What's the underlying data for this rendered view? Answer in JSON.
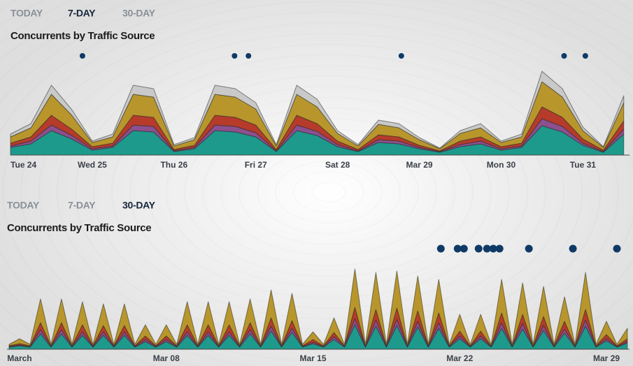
{
  "chart_data": [
    {
      "type": "area",
      "stacked": true,
      "tabs": [
        "TODAY",
        "7-DAY",
        "30-DAY"
      ],
      "selected_tab": 1,
      "title": "Concurrents by Traffic Source",
      "x": [
        0,
        0.25,
        0.5,
        0.75,
        1,
        1.25,
        1.5,
        1.75,
        2,
        2.25,
        2.5,
        2.75,
        3,
        3.25,
        3.5,
        3.75,
        4,
        4.25,
        4.5,
        4.75,
        5,
        5.25,
        5.5,
        5.75,
        6,
        6.25,
        6.5,
        6.75,
        7,
        7.25,
        7.5
      ],
      "xlim": [
        0,
        7.57
      ],
      "ylim": [
        0,
        130
      ],
      "xticks": [
        {
          "value": 0,
          "label": "Tue 24"
        },
        {
          "value": 1,
          "label": "Wed 25"
        },
        {
          "value": 2,
          "label": "Thu 26"
        },
        {
          "value": 3,
          "label": "Fri 27"
        },
        {
          "value": 4,
          "label": "Sat 28"
        },
        {
          "value": 5,
          "label": "Mar 29"
        },
        {
          "value": 6,
          "label": "Mon 30"
        },
        {
          "value": 7,
          "label": "Tue 31"
        }
      ],
      "series": [
        {
          "color": "#1d9a8c",
          "values": [
            11,
            16,
            35,
            23,
            7,
            11,
            35,
            33,
            5,
            9,
            35,
            33,
            26,
            5,
            35,
            28,
            12,
            5,
            18,
            16,
            9,
            4,
            12,
            16,
            7,
            11,
            42,
            33,
            14,
            4,
            30
          ]
        },
        {
          "color": "#8c4f8f",
          "values": [
            2,
            4,
            8,
            5,
            2,
            2,
            8,
            8,
            1,
            2,
            8,
            8,
            6,
            1,
            8,
            6,
            3,
            1,
            4,
            4,
            2,
            1,
            3,
            4,
            2,
            2,
            10,
            8,
            3,
            1,
            7
          ]
        },
        {
          "color": "#b63b2b",
          "values": [
            4,
            6,
            14,
            9,
            3,
            4,
            14,
            13,
            2,
            3,
            14,
            13,
            11,
            2,
            14,
            11,
            5,
            2,
            7,
            6,
            3,
            1,
            5,
            6,
            3,
            4,
            17,
            13,
            6,
            2,
            12
          ]
        },
        {
          "color": "#b8962c",
          "values": [
            9,
            13,
            30,
            20,
            6,
            9,
            30,
            29,
            5,
            8,
            30,
            29,
            23,
            5,
            30,
            24,
            11,
            5,
            15,
            13,
            8,
            3,
            11,
            13,
            6,
            9,
            36,
            29,
            12,
            4,
            26
          ]
        },
        {
          "color": "#c9c9c9",
          "values": [
            4,
            6,
            13,
            8,
            2,
            4,
            13,
            12,
            2,
            3,
            13,
            12,
            9,
            2,
            13,
            11,
            4,
            2,
            6,
            6,
            3,
            1,
            4,
            6,
            2,
            4,
            15,
            12,
            5,
            1,
            10
          ]
        }
      ],
      "events": [
        0.88,
        2.74,
        2.91,
        4.78,
        6.77,
        7.03
      ],
      "event_color": "#0f3a66"
    },
    {
      "type": "area",
      "stacked": true,
      "tabs": [
        "TODAY",
        "7-DAY",
        "30-DAY"
      ],
      "selected_tab": 2,
      "title": "Concurrents by Traffic Source",
      "x": [
        0.5,
        1,
        1.5,
        2,
        2.5,
        3,
        3.5,
        4,
        4.5,
        5,
        5.5,
        6,
        6.5,
        7,
        7.5,
        8,
        8.5,
        9,
        9.5,
        10,
        10.5,
        11,
        11.5,
        12,
        12.5,
        13,
        13.5,
        14,
        14.5,
        15,
        15.5,
        16,
        16.5,
        17,
        17.5,
        18,
        18.5,
        19,
        19.5,
        20,
        20.5,
        21,
        21.5,
        22,
        22.5,
        23,
        23.5,
        24,
        24.5,
        25,
        25.5,
        26,
        26.5,
        27,
        27.5,
        28,
        28.5,
        29,
        29.5,
        30
      ],
      "xlim": [
        0.4,
        30.1
      ],
      "ylim": [
        0,
        120
      ],
      "xticks": [
        {
          "value": 1,
          "label": "March"
        },
        {
          "value": 8,
          "label": "Mar 08"
        },
        {
          "value": 15,
          "label": "Mar 15"
        },
        {
          "value": 22,
          "label": "Mar 22"
        },
        {
          "value": 29,
          "label": "Mar 29"
        }
      ],
      "series": [
        {
          "color": "#1d9a8c",
          "values": [
            3,
            5,
            3,
            22,
            3,
            22,
            3,
            20,
            3,
            20,
            3,
            20,
            3,
            11,
            3,
            11,
            3,
            20,
            3,
            20,
            3,
            20,
            3,
            22,
            3,
            26,
            3,
            24,
            3,
            8,
            3,
            14,
            3,
            35,
            3,
            33,
            3,
            34,
            3,
            32,
            3,
            30,
            3,
            15,
            3,
            15,
            3,
            30,
            3,
            29,
            3,
            27,
            3,
            23,
            3,
            33,
            3,
            12,
            3,
            9
          ]
        },
        {
          "color": "#8c4f8f",
          "values": [
            1,
            1,
            1,
            6,
            1,
            6,
            1,
            5,
            1,
            5,
            1,
            5,
            1,
            3,
            1,
            3,
            1,
            5,
            1,
            5,
            1,
            5,
            1,
            6,
            1,
            7,
            1,
            6,
            1,
            2,
            1,
            4,
            1,
            9,
            1,
            9,
            1,
            9,
            1,
            8,
            1,
            8,
            1,
            4,
            1,
            4,
            1,
            8,
            1,
            8,
            1,
            7,
            1,
            6,
            1,
            9,
            1,
            3,
            1,
            2
          ]
        },
        {
          "color": "#b63b2b",
          "values": [
            1,
            2,
            1,
            10,
            1,
            10,
            1,
            10,
            1,
            9,
            1,
            9,
            1,
            5,
            1,
            5,
            1,
            10,
            1,
            10,
            1,
            10,
            1,
            10,
            1,
            12,
            1,
            11,
            1,
            4,
            1,
            6,
            1,
            16,
            1,
            15,
            1,
            16,
            1,
            15,
            1,
            14,
            1,
            7,
            1,
            7,
            1,
            14,
            1,
            13,
            1,
            13,
            1,
            11,
            1,
            15,
            1,
            6,
            1,
            4
          ]
        },
        {
          "color": "#b8962c",
          "values": [
            2,
            7,
            2,
            34,
            2,
            34,
            2,
            33,
            2,
            31,
            2,
            31,
            2,
            16,
            2,
            16,
            2,
            33,
            2,
            33,
            2,
            33,
            2,
            34,
            2,
            40,
            2,
            39,
            2,
            11,
            2,
            21,
            2,
            55,
            2,
            53,
            2,
            53,
            2,
            50,
            2,
            48,
            2,
            24,
            2,
            24,
            2,
            48,
            2,
            45,
            2,
            43,
            2,
            35,
            2,
            53,
            2,
            19,
            2,
            15
          ]
        }
      ],
      "events": [
        21.1,
        21.9,
        22.2,
        22.9,
        23.3,
        23.6,
        23.9,
        25.3,
        27.4,
        29.5
      ],
      "event_color": "#0f3a66"
    }
  ]
}
